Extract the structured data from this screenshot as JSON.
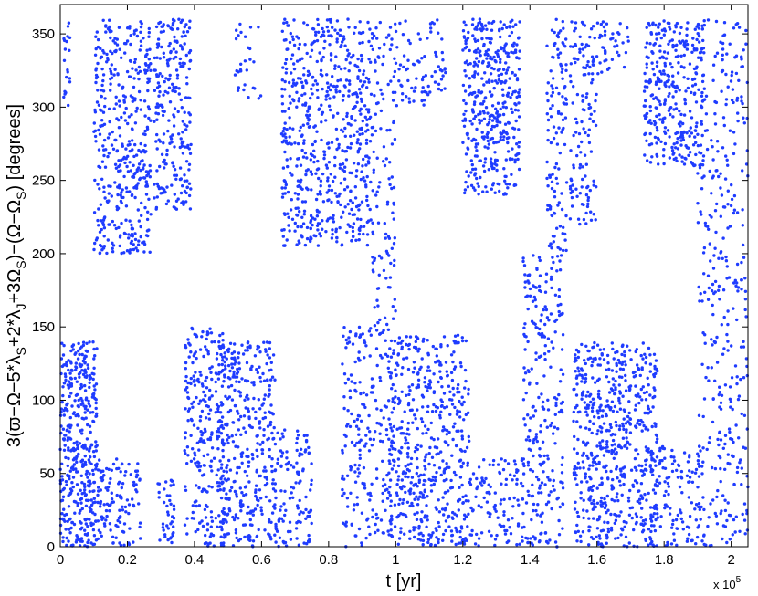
{
  "chart_data": {
    "type": "scatter",
    "xlabel": "t [yr]",
    "ylabel_parts": [
      "3(ϖ−Ω−5*λ",
      "S",
      "+2*λ",
      "J",
      "+3Ω",
      "S",
      ")−(Ω−Ω",
      "S",
      ") [degrees]"
    ],
    "x_multiplier": "x 10",
    "x_multiplier_exp": "5",
    "xlim": [
      0,
      2.05
    ],
    "ylim": [
      0,
      370
    ],
    "x_ticks": [
      0,
      0.2,
      0.4,
      0.6,
      0.8,
      1,
      1.2,
      1.4,
      1.6,
      1.8,
      2
    ],
    "x_tick_labels": [
      "0",
      "0.2",
      "0.4",
      "0.6",
      "0.8",
      "1",
      "1.2",
      "1.4",
      "1.6",
      "1.8",
      "2"
    ],
    "y_ticks": [
      0,
      50,
      100,
      150,
      200,
      250,
      300,
      350
    ],
    "y_tick_labels": [
      "0",
      "50",
      "100",
      "150",
      "200",
      "250",
      "300",
      "350"
    ],
    "grid": false,
    "marker_color": "#1f3cff",
    "series": [
      {
        "clusters": [
          {
            "x": [
              0.0,
              0.11
            ],
            "y": [
              0,
              140
            ],
            "n": 420
          },
          {
            "x": [
              0.01,
              0.03
            ],
            "y": [
              300,
              360
            ],
            "n": 20
          },
          {
            "x": [
              0.1,
              0.27
            ],
            "y": [
              200,
              360
            ],
            "n": 420
          },
          {
            "x": [
              0.11,
              0.24
            ],
            "y": [
              0,
              60
            ],
            "n": 120
          },
          {
            "x": [
              0.28,
              0.39
            ],
            "y": [
              230,
              360
            ],
            "n": 240
          },
          {
            "x": [
              0.29,
              0.34
            ],
            "y": [
              0,
              50
            ],
            "n": 40
          },
          {
            "x": [
              0.37,
              0.49
            ],
            "y": [
              0,
              150
            ],
            "n": 260
          },
          {
            "x": [
              0.47,
              0.64
            ],
            "y": [
              0,
              140
            ],
            "n": 380
          },
          {
            "x": [
              0.52,
              0.6
            ],
            "y": [
              300,
              360
            ],
            "n": 30
          },
          {
            "x": [
              0.64,
              0.75
            ],
            "y": [
              0,
              80
            ],
            "n": 120
          },
          {
            "x": [
              0.66,
              0.93
            ],
            "y": [
              205,
              360
            ],
            "n": 620
          },
          {
            "x": [
              0.84,
              0.99
            ],
            "y": [
              0,
              150
            ],
            "n": 220
          },
          {
            "x": [
              0.93,
              1.0
            ],
            "y": [
              150,
              360
            ],
            "n": 120
          },
          {
            "x": [
              0.98,
              1.22
            ],
            "y": [
              0,
              145
            ],
            "n": 520
          },
          {
            "x": [
              1.0,
              1.15
            ],
            "y": [
              300,
              360
            ],
            "n": 80
          },
          {
            "x": [
              1.2,
              1.37
            ],
            "y": [
              240,
              360
            ],
            "n": 420
          },
          {
            "x": [
              1.22,
              1.38
            ],
            "y": [
              0,
              60
            ],
            "n": 110
          },
          {
            "x": [
              1.38,
              1.5
            ],
            "y": [
              0,
              200
            ],
            "n": 260
          },
          {
            "x": [
              1.45,
              1.51
            ],
            "y": [
              200,
              360
            ],
            "n": 120
          },
          {
            "x": [
              1.52,
              1.6
            ],
            "y": [
              220,
              360
            ],
            "n": 130
          },
          {
            "x": [
              1.53,
              1.78
            ],
            "y": [
              0,
              140
            ],
            "n": 620
          },
          {
            "x": [
              1.6,
              1.7
            ],
            "y": [
              320,
              360
            ],
            "n": 40
          },
          {
            "x": [
              1.74,
              1.92
            ],
            "y": [
              260,
              360
            ],
            "n": 330
          },
          {
            "x": [
              1.76,
              1.92
            ],
            "y": [
              0,
              70
            ],
            "n": 120
          },
          {
            "x": [
              1.9,
              2.05
            ],
            "y": [
              0,
              360
            ],
            "n": 360
          }
        ]
      }
    ]
  }
}
